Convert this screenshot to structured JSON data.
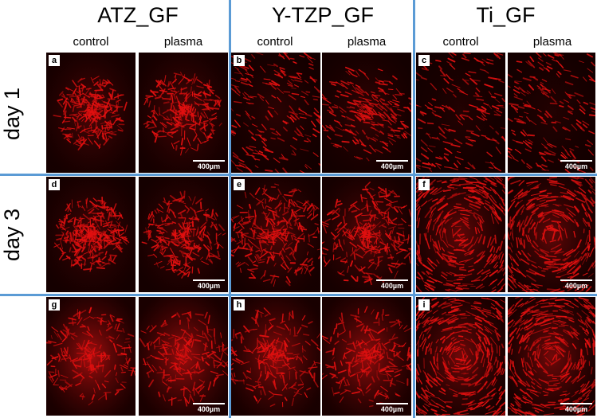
{
  "groups": [
    {
      "title": "ATZ_GF"
    },
    {
      "title": "Y-TZP_GF"
    },
    {
      "title": "Ti_GF"
    }
  ],
  "conditions": [
    "control",
    "plasma"
  ],
  "rows": [
    {
      "label": "day 1"
    },
    {
      "label": "day 3"
    },
    {
      "label": ""
    }
  ],
  "panel_letters": [
    "a",
    "b",
    "c",
    "d",
    "e",
    "f",
    "g",
    "h",
    "i"
  ],
  "scale_bar": "400µm",
  "colors": {
    "divider": "#5b9bd5",
    "cell_red": "#e01010",
    "background_dark": "#140000"
  }
}
